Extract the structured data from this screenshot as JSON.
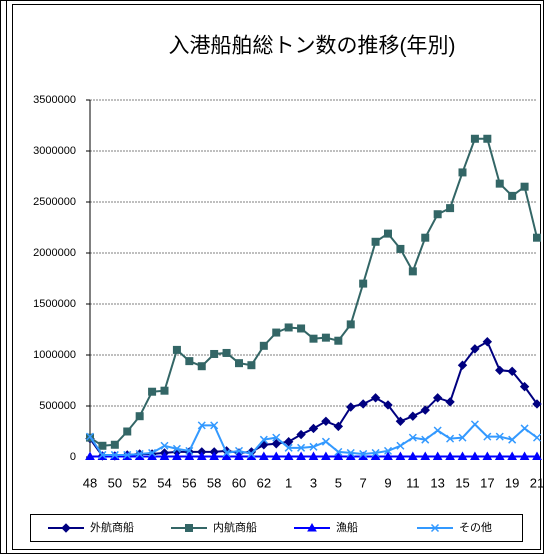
{
  "chart_data": {
    "type": "line",
    "title": "入港船舶総トン数の推移(年別)",
    "categories": [
      "48",
      null,
      "50",
      null,
      "52",
      null,
      "54",
      null,
      "56",
      null,
      "58",
      null,
      "60",
      null,
      "62",
      null,
      "1",
      null,
      "3",
      null,
      "5",
      null,
      "7",
      null,
      "9",
      null,
      "11",
      null,
      "13",
      null,
      "15",
      null,
      "17",
      null,
      "19",
      null,
      "21"
    ],
    "series": [
      {
        "name": "外航商船",
        "color": "#000080",
        "marker": "diamond",
        "values": [
          180000,
          10000,
          10000,
          20000,
          30000,
          30000,
          40000,
          50000,
          50000,
          50000,
          50000,
          60000,
          40000,
          50000,
          120000,
          130000,
          150000,
          220000,
          280000,
          350000,
          300000,
          490000,
          520000,
          580000,
          510000,
          350000,
          400000,
          460000,
          580000,
          540000,
          900000,
          1060000,
          1130000,
          850000,
          840000,
          690000,
          520000
        ]
      },
      {
        "name": "内航商船",
        "color": "#336666",
        "marker": "square",
        "values": [
          190000,
          110000,
          120000,
          250000,
          400000,
          640000,
          650000,
          1050000,
          940000,
          890000,
          1010000,
          1020000,
          920000,
          900000,
          1090000,
          1220000,
          1270000,
          1260000,
          1160000,
          1170000,
          1140000,
          1300000,
          1700000,
          2110000,
          2190000,
          2040000,
          1820000,
          2150000,
          2380000,
          2440000,
          2790000,
          3120000,
          3120000,
          2680000,
          2560000,
          2650000,
          2150000
        ]
      },
      {
        "name": "漁船",
        "color": "#0000ff",
        "marker": "triangle",
        "values": [
          5000,
          5000,
          5000,
          5000,
          5000,
          5000,
          5000,
          5000,
          5000,
          5000,
          5000,
          5000,
          5000,
          5000,
          5000,
          5000,
          5000,
          5000,
          5000,
          5000,
          5000,
          5000,
          5000,
          5000,
          5000,
          5000,
          5000,
          5000,
          5000,
          5000,
          5000,
          5000,
          5000,
          5000,
          5000,
          5000,
          5000
        ]
      },
      {
        "name": "その他",
        "color": "#3399ff",
        "marker": "x",
        "values": [
          200000,
          20000,
          20000,
          20000,
          30000,
          40000,
          110000,
          80000,
          60000,
          310000,
          310000,
          40000,
          60000,
          30000,
          170000,
          190000,
          90000,
          90000,
          100000,
          150000,
          50000,
          40000,
          30000,
          40000,
          60000,
          110000,
          190000,
          170000,
          260000,
          180000,
          190000,
          320000,
          200000,
          200000,
          170000,
          280000,
          190000
        ]
      }
    ],
    "ylim": [
      0,
      3500000
    ],
    "yticks": [
      0,
      500000,
      1000000,
      1500000,
      2000000,
      2500000,
      3000000,
      3500000
    ],
    "grid": true,
    "legend": "bottom"
  }
}
